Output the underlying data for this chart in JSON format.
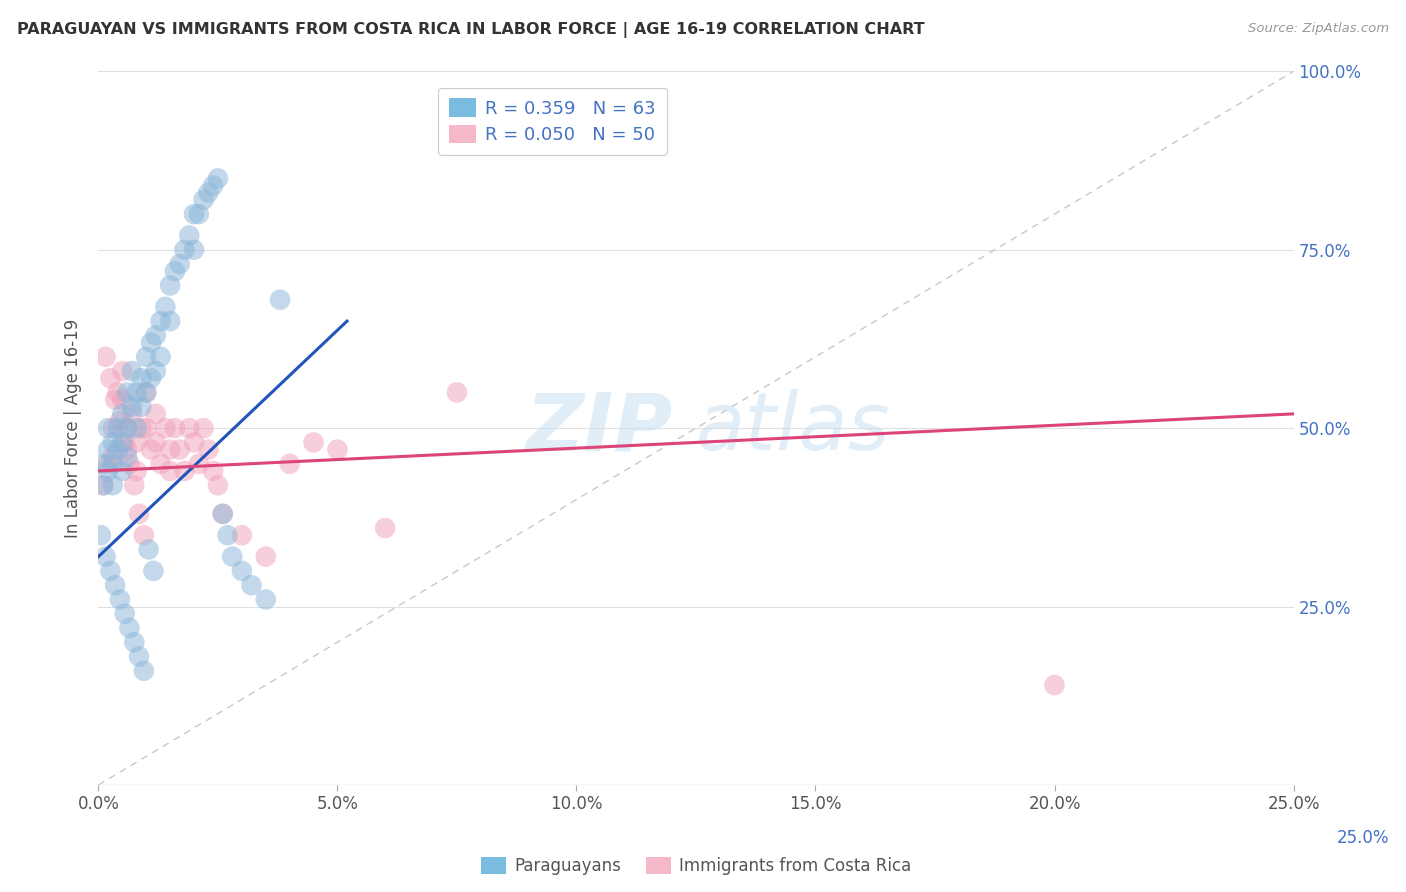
{
  "title": "PARAGUAYAN VS IMMIGRANTS FROM COSTA RICA IN LABOR FORCE | AGE 16-19 CORRELATION CHART",
  "source": "Source: ZipAtlas.com",
  "ylabel": "In Labor Force | Age 16-19",
  "x_ticks": [
    0.0,
    5.0,
    10.0,
    15.0,
    20.0,
    25.0
  ],
  "y_ticks": [
    0.0,
    25.0,
    50.0,
    75.0,
    100.0
  ],
  "x_tick_labels": [
    "0.0%",
    "5.0%",
    "10.0%",
    "15.0%",
    "20.0%",
    "25.0%"
  ],
  "y_tick_labels_left": [
    "",
    "",
    "",
    "",
    ""
  ],
  "y_tick_labels_right": [
    "",
    "25.0%",
    "50.0%",
    "75.0%",
    "100.0%"
  ],
  "xlim": [
    0.0,
    25.0
  ],
  "ylim": [
    0.0,
    100.0
  ],
  "legend_entries": [
    {
      "label": "Paraguayans",
      "color": "#a8c4e0",
      "R": "0.359",
      "N": "63"
    },
    {
      "label": "Immigrants from Costa Rica",
      "color": "#f4a8b8",
      "R": "0.050",
      "N": "50"
    }
  ],
  "blue_scatter_x": [
    0.1,
    0.1,
    0.2,
    0.2,
    0.2,
    0.3,
    0.3,
    0.3,
    0.4,
    0.4,
    0.5,
    0.5,
    0.5,
    0.6,
    0.6,
    0.6,
    0.7,
    0.7,
    0.8,
    0.8,
    0.9,
    0.9,
    1.0,
    1.0,
    1.1,
    1.1,
    1.2,
    1.2,
    1.3,
    1.3,
    1.4,
    1.5,
    1.5,
    1.6,
    1.7,
    1.8,
    1.9,
    2.0,
    2.0,
    2.1,
    2.2,
    2.3,
    2.4,
    2.5,
    2.6,
    2.7,
    2.8,
    3.0,
    3.2,
    3.5,
    0.05,
    0.15,
    0.25,
    0.35,
    0.45,
    0.55,
    0.65,
    0.75,
    0.85,
    0.95,
    1.05,
    1.15,
    3.8
  ],
  "blue_scatter_y": [
    45.0,
    42.0,
    50.0,
    47.0,
    44.0,
    48.0,
    45.0,
    42.0,
    50.0,
    47.0,
    52.0,
    48.0,
    44.0,
    55.0,
    50.0,
    46.0,
    58.0,
    53.0,
    55.0,
    50.0,
    57.0,
    53.0,
    60.0,
    55.0,
    62.0,
    57.0,
    63.0,
    58.0,
    65.0,
    60.0,
    67.0,
    70.0,
    65.0,
    72.0,
    73.0,
    75.0,
    77.0,
    80.0,
    75.0,
    80.0,
    82.0,
    83.0,
    84.0,
    85.0,
    38.0,
    35.0,
    32.0,
    30.0,
    28.0,
    26.0,
    35.0,
    32.0,
    30.0,
    28.0,
    26.0,
    24.0,
    22.0,
    20.0,
    18.0,
    16.0,
    33.0,
    30.0,
    68.0
  ],
  "pink_scatter_x": [
    0.1,
    0.2,
    0.3,
    0.3,
    0.4,
    0.5,
    0.5,
    0.6,
    0.6,
    0.7,
    0.8,
    0.8,
    0.9,
    1.0,
    1.0,
    1.1,
    1.2,
    1.2,
    1.3,
    1.4,
    1.5,
    1.5,
    1.6,
    1.7,
    1.8,
    1.9,
    2.0,
    2.1,
    2.2,
    2.3,
    2.4,
    2.5,
    2.6,
    3.0,
    3.5,
    4.0,
    4.5,
    5.0,
    6.0,
    7.5,
    0.15,
    0.25,
    0.35,
    0.45,
    0.55,
    0.65,
    0.75,
    0.85,
    0.95,
    20.0
  ],
  "pink_scatter_y": [
    42.0,
    45.0,
    50.0,
    46.0,
    55.0,
    58.0,
    54.0,
    50.0,
    47.0,
    52.0,
    48.0,
    44.0,
    50.0,
    55.0,
    50.0,
    47.0,
    52.0,
    48.0,
    45.0,
    50.0,
    47.0,
    44.0,
    50.0,
    47.0,
    44.0,
    50.0,
    48.0,
    45.0,
    50.0,
    47.0,
    44.0,
    42.0,
    38.0,
    35.0,
    32.0,
    45.0,
    48.0,
    47.0,
    36.0,
    55.0,
    60.0,
    57.0,
    54.0,
    51.0,
    48.0,
    45.0,
    42.0,
    38.0,
    35.0,
    14.0
  ],
  "blue_line_x": [
    0.0,
    5.2
  ],
  "blue_line_y": [
    32.0,
    65.0
  ],
  "pink_line_x": [
    0.0,
    25.0
  ],
  "pink_line_y": [
    44.0,
    52.0
  ],
  "ref_line_x": [
    0.0,
    25.0
  ],
  "ref_line_y": [
    0.0,
    100.0
  ],
  "watermark_zip": "ZIP",
  "watermark_atlas": "atlas",
  "bg_color": "#ffffff",
  "plot_bg_color": "#ffffff",
  "grid_color": "#e0e0e0",
  "blue_dot_color": "#89b4d9",
  "pink_dot_color": "#f0a0b8",
  "blue_line_color": "#2255bb",
  "pink_line_color": "#dd4477",
  "title_color": "#333333",
  "axis_label_color": "#555555",
  "tick_color": "#555555",
  "right_tick_color": "#4472c4",
  "legend_blue_color": "#7abbe0",
  "legend_pink_color": "#f5b8c8"
}
